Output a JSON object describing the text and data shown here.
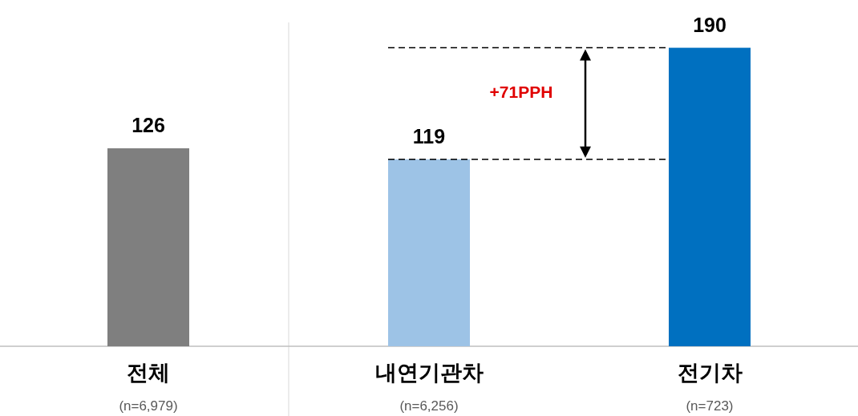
{
  "chart_data": {
    "type": "bar",
    "categories": [
      "전체",
      "내연기관차",
      "전기차"
    ],
    "values": [
      126,
      119,
      190
    ],
    "colors": [
      "#7f7f7f",
      "#9dc3e6",
      "#0070c0"
    ],
    "data_labels": true,
    "ref_lines": [
      {
        "axis": "y",
        "value": 119,
        "color": "#000000",
        "line_style": "dashed"
      },
      {
        "axis": "y",
        "value": 190,
        "color": "#000000",
        "line_style": "dashed"
      }
    ],
    "annotations": [
      "+71PPH",
      "(n=6,979)",
      "(n=6,256)",
      "(n=723)"
    ]
  }
}
